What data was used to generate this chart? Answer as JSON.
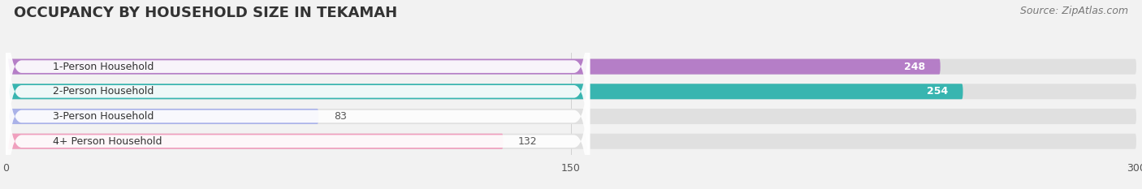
{
  "title": "OCCUPANCY BY HOUSEHOLD SIZE IN TEKAMAH",
  "source": "Source: ZipAtlas.com",
  "categories": [
    "1-Person Household",
    "2-Person Household",
    "3-Person Household",
    "4+ Person Household"
  ],
  "values": [
    248,
    254,
    83,
    132
  ],
  "bar_colors": [
    "#b57ec7",
    "#38b5b0",
    "#aab2e8",
    "#f0a0be"
  ],
  "bar_label_colors": [
    "white",
    "white",
    "#444444",
    "#444444"
  ],
  "xlim": [
    0,
    300
  ],
  "xticks": [
    0,
    150,
    300
  ],
  "background_color": "#f2f2f2",
  "bar_bg_color": "#e0e0e0",
  "title_fontsize": 13,
  "source_fontsize": 9,
  "tick_fontsize": 9,
  "label_fontsize": 9,
  "value_fontsize": 9,
  "bar_height": 0.62,
  "fig_width": 14.06,
  "fig_height": 2.33,
  "dpi": 100
}
